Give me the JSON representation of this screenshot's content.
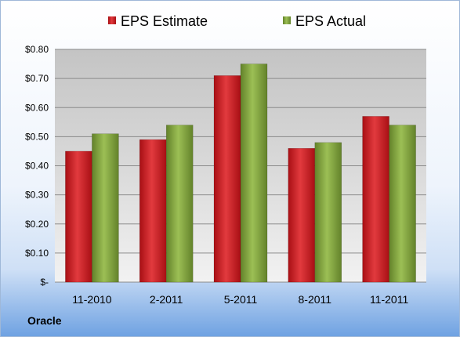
{
  "chart_data": {
    "type": "bar",
    "categories": [
      "11-2010",
      "2-2011",
      "5-2011",
      "8-2011",
      "11-2011"
    ],
    "series": [
      {
        "name": "EPS Estimate",
        "color": "#c8161d",
        "values": [
          0.45,
          0.49,
          0.71,
          0.46,
          0.57
        ]
      },
      {
        "name": "EPS Actual",
        "color": "#7fa33a",
        "values": [
          0.51,
          0.54,
          0.75,
          0.48,
          0.54
        ]
      }
    ],
    "yticks": [
      {
        "value": 0,
        "label": "$-"
      },
      {
        "value": 0.1,
        "label": "$0.10"
      },
      {
        "value": 0.2,
        "label": "$0.20"
      },
      {
        "value": 0.3,
        "label": "$0.30"
      },
      {
        "value": 0.4,
        "label": "$0.40"
      },
      {
        "value": 0.5,
        "label": "$0.50"
      },
      {
        "value": 0.6,
        "label": "$0.60"
      },
      {
        "value": 0.7,
        "label": "$0.70"
      },
      {
        "value": 0.8,
        "label": "$0.80"
      }
    ],
    "ylim": [
      0,
      0.8
    ],
    "grid": true,
    "legend_position": "top"
  },
  "company_label": "Oracle"
}
